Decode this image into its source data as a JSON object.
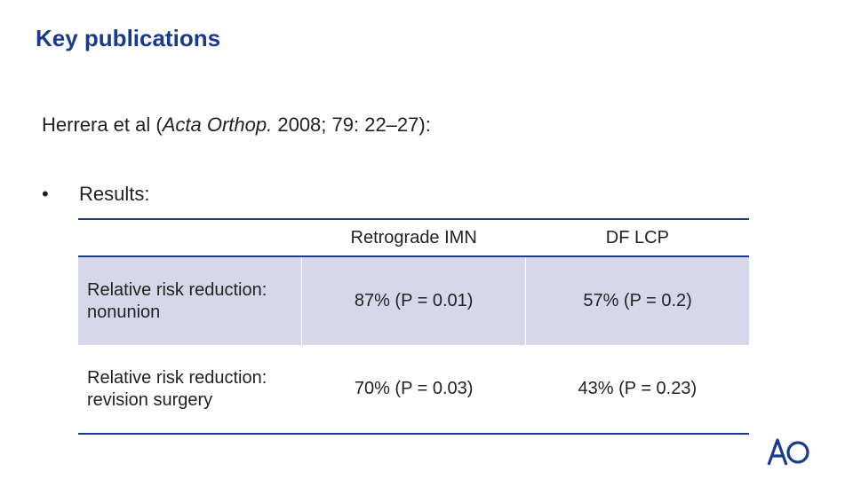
{
  "slide": {
    "title": "Key publications",
    "citation_prefix": "Herrera et al (",
    "citation_journal": "Acta Orthop.",
    "citation_suffix": " 2008; 79: 22–27):",
    "bullet_symbol": "•",
    "bullet_text": "Results:"
  },
  "table": {
    "headers": [
      "",
      "Retrograde IMN",
      "DF LCP"
    ],
    "rows": [
      {
        "label": "Relative risk reduction: nonunion",
        "imn": "87% (P = 0.01)",
        "lcp": "57% (P = 0.2)"
      },
      {
        "label": "Relative risk reduction: revision surgery",
        "imn": "70% (P = 0.03)",
        "lcp": "43% (P = 0.23)"
      }
    ]
  },
  "logo": {
    "text": "AO",
    "color": "#1b3a8a"
  }
}
